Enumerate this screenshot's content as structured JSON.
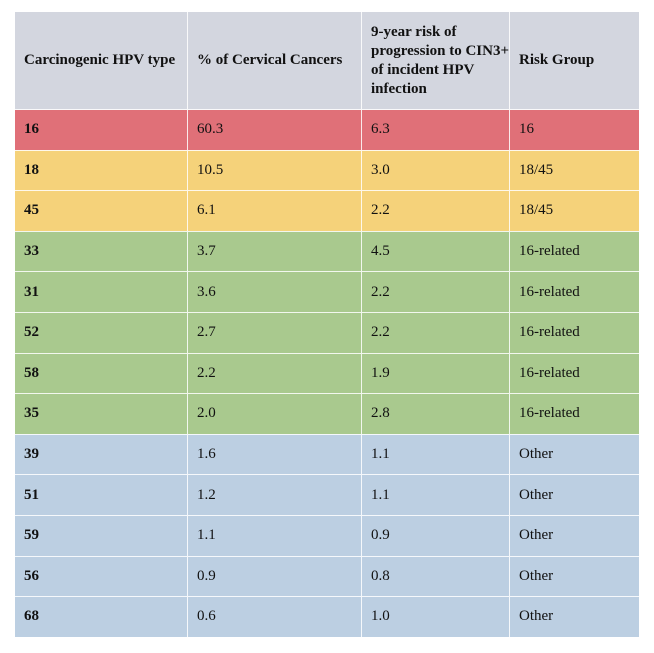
{
  "headers": [
    "Carcinogenic HPV type",
    "% of Cervical Cancers",
    "9-year risk of progression to CIN3+ of incident HPV infection",
    "Risk Group"
  ],
  "rows": [
    {
      "type": "16",
      "pct": "60.3",
      "risk": "6.3",
      "group": "16"
    },
    {
      "type": "18",
      "pct": "10.5",
      "risk": "3.0",
      "group": "18/45"
    },
    {
      "type": "45",
      "pct": "6.1",
      "risk": "2.2",
      "group": "18/45"
    },
    {
      "type": "33",
      "pct": "3.7",
      "risk": "4.5",
      "group": "16-related"
    },
    {
      "type": "31",
      "pct": "3.6",
      "risk": "2.2",
      "group": "16-related"
    },
    {
      "type": "52",
      "pct": "2.7",
      "risk": "2.2",
      "group": "16-related"
    },
    {
      "type": "58",
      "pct": "2.2",
      "risk": "1.9",
      "group": "16-related"
    },
    {
      "type": "35",
      "pct": "2.0",
      "risk": "2.8",
      "group": "16-related"
    },
    {
      "type": "39",
      "pct": "1.6",
      "risk": "1.1",
      "group": "Other"
    },
    {
      "type": "51",
      "pct": "1.2",
      "risk": "1.1",
      "group": "Other"
    },
    {
      "type": "59",
      "pct": "1.1",
      "risk": "0.9",
      "group": "Other"
    },
    {
      "type": "56",
      "pct": "0.9",
      "risk": "0.8",
      "group": "Other"
    },
    {
      "type": "68",
      "pct": "0.6",
      "risk": "1.0",
      "group": "Other"
    }
  ],
  "group_colors": {
    "16": "#e07078",
    "18/45": "#f5d27a",
    "16-related": "#a9c98e",
    "Other": "#bccfe2",
    "header": "#d3d6df"
  }
}
